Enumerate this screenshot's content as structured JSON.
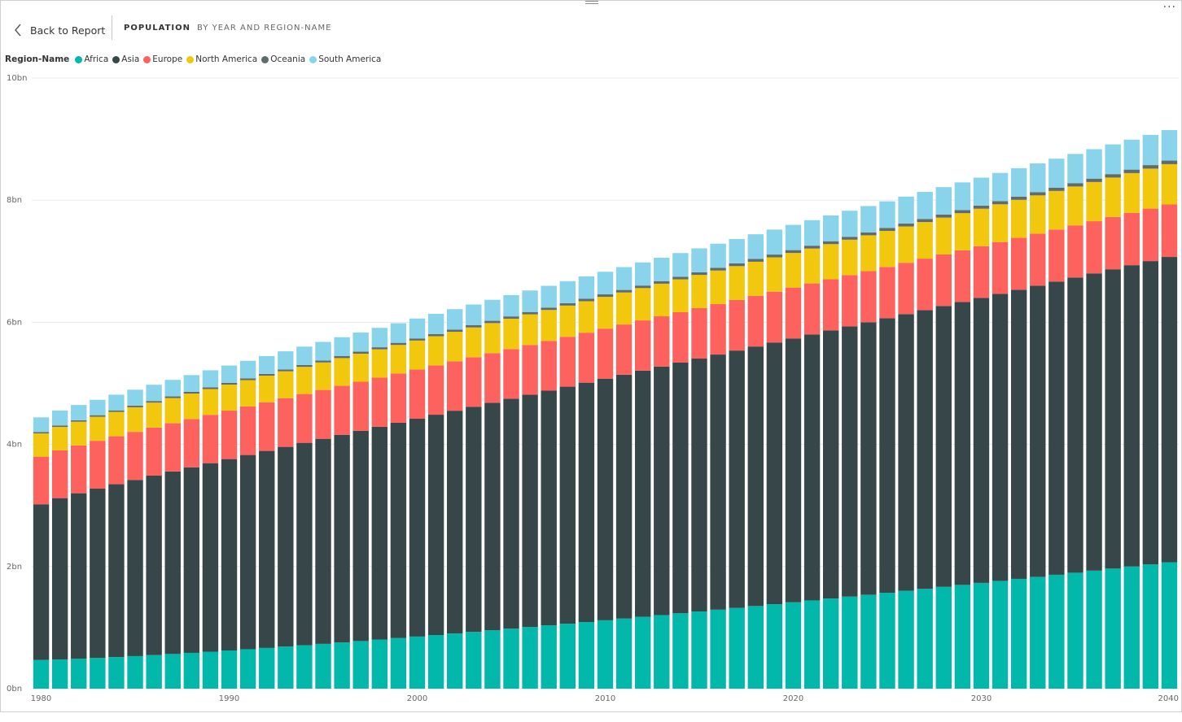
{
  "header": {
    "back_label": "Back to Report",
    "tab_title": "POPULATION",
    "tab_subtitle": "BY YEAR AND REGION-NAME",
    "more_label": "..."
  },
  "legend": {
    "title": "Region-Name",
    "items": [
      {
        "name": "Africa",
        "color": "#01B8AA"
      },
      {
        "name": "Asia",
        "color": "#374649"
      },
      {
        "name": "Europe",
        "color": "#FD625E"
      },
      {
        "name": "North America",
        "color": "#F2C80F"
      },
      {
        "name": "Oceania",
        "color": "#5F6B6D"
      },
      {
        "name": "South America",
        "color": "#8AD4EB"
      }
    ]
  },
  "chart_data": {
    "type": "bar",
    "stacked": true,
    "x_start": 1980,
    "x_end": 2040,
    "x_ticks": [
      "1980",
      "1990",
      "2000",
      "2010",
      "2020",
      "2030",
      "2040"
    ],
    "y_ticks": [
      "0bn",
      "2bn",
      "4bn",
      "6bn",
      "8bn",
      "10bn"
    ],
    "ylim": [
      0,
      10
    ],
    "grid": true,
    "legend_position": "top-left",
    "series": [
      {
        "name": "Africa",
        "color": "#01B8AA",
        "start": 0.47,
        "end": 2.07,
        "curve": 1.3
      },
      {
        "name": "Asia",
        "color": "#374649",
        "start": 2.55,
        "end": 5.0,
        "curve": 0.8
      },
      {
        "name": "Europe",
        "color": "#FD625E",
        "start": 0.78,
        "end": 0.86,
        "curve": 1.0
      },
      {
        "name": "North America",
        "color": "#F2C80F",
        "start": 0.38,
        "end": 0.66,
        "curve": 1.0
      },
      {
        "name": "Oceania",
        "color": "#5F6B6D",
        "start": 0.023,
        "end": 0.058,
        "curve": 1.0
      },
      {
        "name": "South America",
        "color": "#8AD4EB",
        "start": 0.24,
        "end": 0.5,
        "curve": 1.0
      }
    ]
  }
}
